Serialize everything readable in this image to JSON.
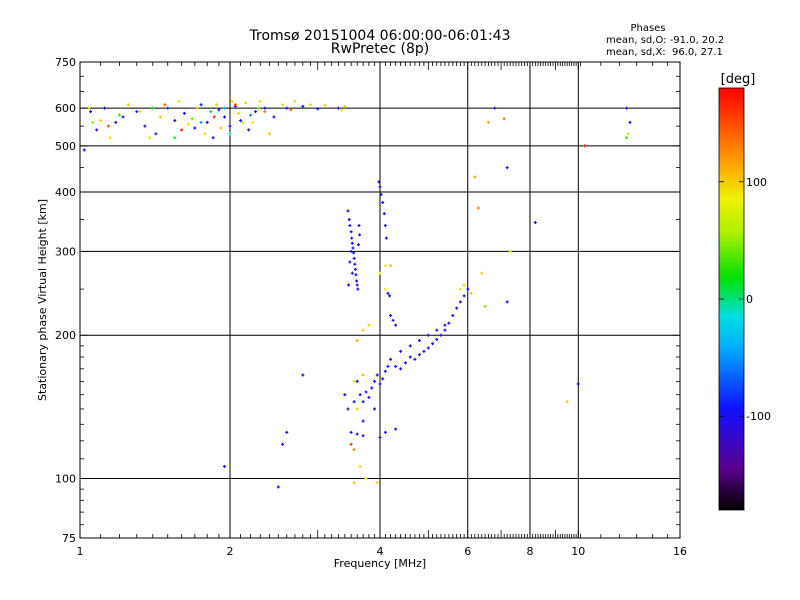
{
  "chart_data": {
    "type": "scatter",
    "title": "Tromsø 20151004 06:00:00-06:01:43",
    "subtitle": "RwPretec (8p)",
    "xlabel": "Frequency [MHz]",
    "ylabel": "Stationary phase Virtual Height [km]",
    "x_scale": "log",
    "y_scale": "log",
    "xlim": [
      1,
      16
    ],
    "ylim": [
      75,
      750
    ],
    "x_ticks": [
      1,
      2,
      4,
      6,
      8,
      10,
      16
    ],
    "x_tick_labels": [
      "1",
      "2",
      "4",
      "6",
      "8",
      "10",
      "16"
    ],
    "y_ticks": [
      75,
      100,
      200,
      300,
      400,
      500,
      600,
      750
    ],
    "y_tick_labels": [
      "75",
      "100",
      "200",
      "300",
      "400",
      "500",
      "600",
      "750"
    ],
    "grid": true,
    "legend": {
      "title": "Phases",
      "lines": [
        "mean, sd,O: -91.0, 20.2",
        "mean, sd,X:  96.0, 27.1"
      ],
      "placement": "top-right"
    },
    "colorbar": {
      "label": "[deg]",
      "range": [
        -180,
        180
      ],
      "ticks": [
        100,
        0,
        -100
      ],
      "tick_labels": [
        "100",
        "0",
        "-100"
      ]
    },
    "series": [
      {
        "points": [
          [
            1.05,
            590,
            -100
          ],
          [
            1.08,
            540,
            -95
          ],
          [
            1.12,
            600,
            -90
          ],
          [
            1.18,
            560,
            -105
          ],
          [
            1.22,
            575,
            -98
          ],
          [
            1.3,
            590,
            -90
          ],
          [
            1.35,
            550,
            -100
          ],
          [
            1.42,
            530,
            -92
          ],
          [
            1.5,
            600,
            -85
          ],
          [
            1.55,
            565,
            -110
          ],
          [
            1.62,
            585,
            -95
          ],
          [
            1.7,
            545,
            -100
          ],
          [
            1.75,
            610,
            -88
          ],
          [
            1.8,
            560,
            -102
          ],
          [
            1.85,
            520,
            -97
          ],
          [
            1.9,
            595,
            -93
          ],
          [
            1.95,
            575,
            -99
          ],
          [
            2.0,
            550,
            -91
          ],
          [
            2.05,
            605,
            -104
          ],
          [
            2.1,
            565,
            -95
          ],
          [
            2.18,
            540,
            -100
          ],
          [
            2.25,
            590,
            -90
          ],
          [
            2.35,
            600,
            -96
          ],
          [
            2.45,
            575,
            -92
          ],
          [
            2.6,
            600,
            -95
          ],
          [
            2.8,
            605,
            -92
          ],
          [
            3.0,
            598,
            -100
          ],
          [
            3.3,
            600,
            -96
          ],
          [
            1.02,
            490,
            -98
          ],
          [
            6.8,
            600,
            -95
          ],
          [
            7.2,
            450,
            -92
          ],
          [
            12.5,
            600,
            -98
          ],
          [
            12.7,
            560,
            -100
          ],
          [
            3.45,
            365,
            -95
          ],
          [
            3.47,
            350,
            -100
          ],
          [
            3.48,
            340,
            -92
          ],
          [
            3.5,
            330,
            -98
          ],
          [
            3.51,
            320,
            -105
          ],
          [
            3.52,
            312,
            -95
          ],
          [
            3.53,
            305,
            -90
          ],
          [
            3.54,
            298,
            -100
          ],
          [
            3.55,
            290,
            -96
          ],
          [
            3.56,
            282,
            -99
          ],
          [
            3.57,
            275,
            -101
          ],
          [
            3.58,
            268,
            -93
          ],
          [
            3.59,
            260,
            -97
          ],
          [
            3.6,
            255,
            -102
          ],
          [
            3.61,
            250,
            -95
          ],
          [
            3.5,
            300,
            -98
          ],
          [
            3.52,
            270,
            -94
          ],
          [
            3.48,
            285,
            -100
          ],
          [
            3.62,
            310,
            -96
          ],
          [
            3.63,
            340,
            -99
          ],
          [
            3.64,
            325,
            -92
          ],
          [
            3.46,
            255,
            -104
          ],
          [
            3.98,
            420,
            -95
          ],
          [
            4.0,
            410,
            -100
          ],
          [
            4.02,
            395,
            -92
          ],
          [
            4.05,
            380,
            -97
          ],
          [
            4.08,
            360,
            -100
          ],
          [
            4.1,
            340,
            -94
          ],
          [
            4.12,
            320,
            -98
          ],
          [
            4.15,
            245,
            -100
          ],
          [
            4.18,
            242,
            -95
          ],
          [
            4.2,
            220,
            -99
          ],
          [
            4.25,
            215,
            -90
          ],
          [
            4.3,
            210,
            -96
          ],
          [
            3.6,
            160,
            -95
          ],
          [
            3.65,
            150,
            -100
          ],
          [
            3.7,
            145,
            -92
          ],
          [
            3.75,
            152,
            -98
          ],
          [
            3.8,
            148,
            -104
          ],
          [
            3.85,
            155,
            -95
          ],
          [
            3.9,
            160,
            -91
          ],
          [
            3.95,
            165,
            -99
          ],
          [
            4.0,
            158,
            -100
          ],
          [
            4.05,
            162,
            -96
          ],
          [
            4.1,
            168,
            -93
          ],
          [
            4.15,
            172,
            -100
          ],
          [
            4.2,
            178,
            -97
          ],
          [
            4.3,
            172,
            -95
          ],
          [
            4.4,
            170,
            -101
          ],
          [
            4.5,
            175,
            -92
          ],
          [
            4.6,
            180,
            -98
          ],
          [
            4.7,
            178,
            -95
          ],
          [
            4.8,
            182,
            -99
          ],
          [
            4.9,
            185,
            -94
          ],
          [
            5.0,
            188,
            -100
          ],
          [
            5.1,
            192,
            -96
          ],
          [
            5.2,
            196,
            -98
          ],
          [
            5.3,
            200,
            -93
          ],
          [
            5.4,
            205,
            -100
          ],
          [
            5.5,
            212,
            -95
          ],
          [
            5.6,
            220,
            -99
          ],
          [
            5.7,
            228,
            -92
          ],
          [
            5.8,
            235,
            -97
          ],
          [
            5.9,
            242,
            -101
          ],
          [
            6.0,
            250,
            -95
          ],
          [
            4.4,
            185,
            -96
          ],
          [
            4.6,
            190,
            -99
          ],
          [
            4.8,
            195,
            -94
          ],
          [
            5.0,
            200,
            -100
          ],
          [
            5.2,
            205,
            -93
          ],
          [
            5.4,
            210,
            -97
          ],
          [
            3.4,
            150,
            -95
          ],
          [
            3.45,
            140,
            -100
          ],
          [
            3.55,
            145,
            -92
          ],
          [
            3.7,
            132,
            -98
          ],
          [
            3.9,
            140,
            -96
          ],
          [
            3.5,
            125,
            -97
          ],
          [
            3.6,
            124,
            -100
          ],
          [
            3.7,
            123,
            -94
          ],
          [
            4.0,
            122,
            -99
          ],
          [
            4.1,
            125,
            -95
          ],
          [
            4.3,
            127,
            -92
          ],
          [
            2.6,
            125,
            -100
          ],
          [
            2.55,
            118,
            -96
          ],
          [
            1.95,
            106,
            -95
          ],
          [
            2.5,
            96,
            -100
          ],
          [
            2.8,
            165,
            -98
          ],
          [
            8.2,
            345,
            -95
          ],
          [
            10.0,
            158,
            -100
          ],
          [
            7.2,
            235,
            -97
          ]
        ]
      },
      {
        "points": [
          [
            1.04,
            600,
            95
          ],
          [
            1.1,
            565,
            100
          ],
          [
            1.15,
            520,
            92
          ],
          [
            1.25,
            610,
            105
          ],
          [
            1.32,
            590,
            98
          ],
          [
            1.38,
            520,
            90
          ],
          [
            1.45,
            575,
            100
          ],
          [
            1.58,
            620,
            88
          ],
          [
            1.65,
            555,
            96
          ],
          [
            1.72,
            600,
            110
          ],
          [
            1.78,
            530,
            94
          ],
          [
            1.88,
            610,
            99
          ],
          [
            1.92,
            545,
            102
          ],
          [
            2.02,
            620,
            93
          ],
          [
            2.08,
            585,
            97
          ],
          [
            2.15,
            615,
            100
          ],
          [
            2.22,
            560,
            91
          ],
          [
            2.3,
            620,
            95
          ],
          [
            2.4,
            530,
            101
          ],
          [
            2.55,
            610,
            98
          ],
          [
            2.7,
            620,
            92
          ],
          [
            2.9,
            610,
            96
          ],
          [
            3.1,
            608,
            99
          ],
          [
            3.35,
            595,
            94
          ],
          [
            3.4,
            605,
            100
          ],
          [
            1.06,
            560,
            50
          ],
          [
            1.2,
            580,
            30
          ],
          [
            1.4,
            600,
            15
          ],
          [
            1.68,
            570,
            45
          ],
          [
            1.83,
            590,
            20
          ],
          [
            2.12,
            560,
            60
          ],
          [
            2.28,
            600,
            40
          ],
          [
            1.55,
            520,
            10
          ],
          [
            2.0,
            530,
            -10
          ],
          [
            1.95,
            600,
            -45
          ],
          [
            2.2,
            580,
            -60
          ],
          [
            1.75,
            560,
            -50
          ],
          [
            1.14,
            550,
            150
          ],
          [
            1.48,
            610,
            140
          ],
          [
            1.86,
            575,
            165
          ],
          [
            2.35,
            590,
            130
          ],
          [
            1.6,
            540,
            170
          ],
          [
            2.05,
            610,
            160
          ],
          [
            2.65,
            595,
            145
          ],
          [
            6.2,
            430,
            120
          ],
          [
            6.3,
            370,
            125
          ],
          [
            6.4,
            270,
            100
          ],
          [
            6.6,
            560,
            115
          ],
          [
            7.1,
            570,
            130
          ],
          [
            10.3,
            500,
            170
          ],
          [
            12.6,
            530,
            60
          ],
          [
            12.5,
            520,
            30
          ],
          [
            4.1,
            250,
            92
          ],
          [
            4.2,
            280,
            105
          ],
          [
            4.0,
            270,
            88
          ],
          [
            3.7,
            165,
            110
          ],
          [
            3.6,
            140,
            98
          ],
          [
            3.55,
            115,
            130
          ],
          [
            3.65,
            106,
            95
          ],
          [
            3.75,
            100,
            85
          ],
          [
            3.55,
            98,
            100
          ],
          [
            3.5,
            118,
            160
          ],
          [
            3.6,
            195,
            115
          ],
          [
            3.7,
            205,
            100
          ],
          [
            3.8,
            210,
            95
          ],
          [
            5.8,
            250,
            90
          ],
          [
            5.9,
            255,
            98
          ],
          [
            6.1,
            245,
            102
          ],
          [
            6.5,
            230,
            45
          ],
          [
            9.5,
            145,
            98
          ],
          [
            7.3,
            300,
            60
          ],
          [
            3.55,
            160,
            75
          ],
          [
            3.95,
            98,
            100
          ],
          [
            4.1,
            280,
            90
          ]
        ]
      }
    ]
  }
}
